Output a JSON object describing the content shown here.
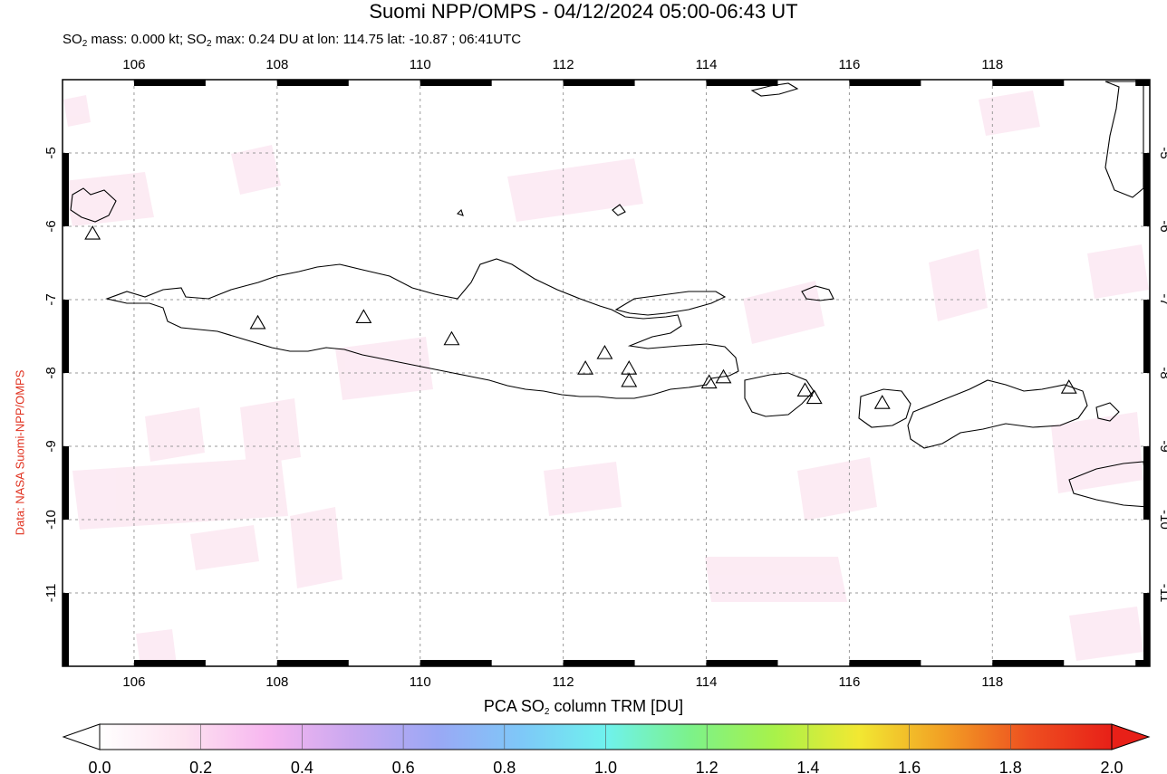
{
  "header": {
    "title": "Suomi NPP/OMPS - 04/12/2024 05:00-06:43 UT",
    "subtitle": {
      "mass_prefix": "SO",
      "mass_sub": "2",
      "mass_text": " mass: 0.000 kt; SO",
      "max_sub": "2",
      "max_text": " max: 0.24 DU at lon: 114.75 lat: -10.87 ; 06:41UTC"
    }
  },
  "credit": "Data: NASA Suomi-NPP/OMPS",
  "map": {
    "lon_range": [
      105.0,
      120.2
    ],
    "lat_range": [
      -12.0,
      -4.0
    ],
    "lon_ticks": [
      "106",
      "108",
      "110",
      "112",
      "114",
      "116",
      "118"
    ],
    "lat_ticks": [
      "-5",
      "-6",
      "-7",
      "-8",
      "-9",
      "-10",
      "-11"
    ],
    "grid": "dotted",
    "volcano_marker": "triangle-icon",
    "volcanoes": [
      {
        "lon": 105.42,
        "lat": -6.1
      },
      {
        "lon": 107.73,
        "lat": -7.32
      },
      {
        "lon": 109.21,
        "lat": -7.24
      },
      {
        "lon": 110.44,
        "lat": -7.54
      },
      {
        "lon": 112.31,
        "lat": -7.94
      },
      {
        "lon": 112.58,
        "lat": -7.73
      },
      {
        "lon": 112.92,
        "lat": -7.94
      },
      {
        "lon": 112.92,
        "lat": -8.11
      },
      {
        "lon": 114.04,
        "lat": -8.13
      },
      {
        "lon": 114.24,
        "lat": -8.06
      },
      {
        "lon": 115.38,
        "lat": -8.24
      },
      {
        "lon": 115.51,
        "lat": -8.34
      },
      {
        "lon": 116.46,
        "lat": -8.41
      },
      {
        "lon": 119.07,
        "lat": -8.2
      }
    ]
  },
  "colorbar": {
    "title_prefix": "PCA SO",
    "title_sub": "2",
    "title_suffix": " column TRM [DU]",
    "min": 0.0,
    "max": 2.0,
    "tick_labels": [
      "0.0",
      "0.2",
      "0.4",
      "0.6",
      "0.8",
      "1.0",
      "1.2",
      "1.4",
      "1.6",
      "1.8",
      "2.0"
    ],
    "colors": [
      "#ffffff",
      "#fde2f0",
      "#f7b6f0",
      "#c9a8f0",
      "#9aa8f5",
      "#7ec8f8",
      "#6ff2ee",
      "#7cf28a",
      "#a8f24a",
      "#f2e832",
      "#f2a024",
      "#ee5020",
      "#e82018"
    ]
  }
}
